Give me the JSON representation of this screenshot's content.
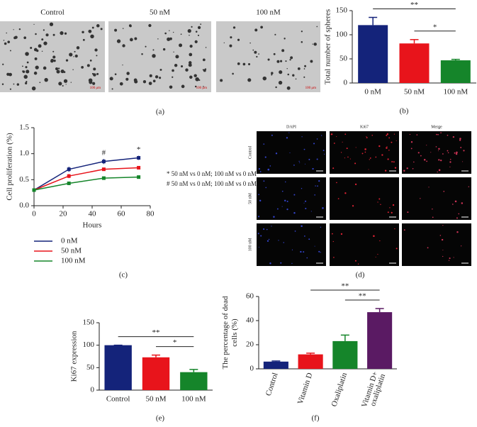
{
  "figure_a": {
    "label": "(a)",
    "images": [
      "Control",
      "50 nM",
      "100 nM"
    ],
    "scale_bar": "100 μm"
  },
  "figure_d": {
    "label": "(d)",
    "columns": [
      "DAPI",
      "Ki67",
      "Merge"
    ],
    "rows": [
      "Control",
      "50 nM",
      "100 nM"
    ]
  },
  "chart_data": [
    {
      "type": "bar",
      "panel": "(b)",
      "ylabel": [
        "Total number of spheres"
      ],
      "categories": [
        "0 nM",
        "50 nM",
        "100 nM"
      ],
      "values": [
        120,
        82,
        47
      ],
      "errors": [
        16,
        8,
        2
      ],
      "colors": [
        "#14237a",
        "#e8141b",
        "#15852a"
      ],
      "ylim": [
        0,
        150
      ],
      "yticks": [
        0,
        50,
        100,
        150
      ],
      "annotations": [
        {
          "text": "*",
          "between": [
            1,
            2
          ]
        },
        {
          "text": "**",
          "between": [
            0,
            2
          ]
        }
      ]
    },
    {
      "type": "line",
      "panel": "(c)",
      "ylabel": [
        "Cell proliferation (%)"
      ],
      "xlabel": "Hours",
      "x": [
        0,
        24,
        48,
        72
      ],
      "series": [
        {
          "name": "0 nM",
          "color": "#14237a",
          "values": [
            0.3,
            0.7,
            0.85,
            0.92
          ],
          "errors": [
            0.03,
            0.05,
            0.05,
            0.04
          ]
        },
        {
          "name": "50 nM",
          "color": "#e8141b",
          "values": [
            0.3,
            0.57,
            0.7,
            0.73
          ],
          "errors": [
            0.03,
            0.04,
            0.02,
            0.03
          ]
        },
        {
          "name": "100 nM",
          "color": "#15852a",
          "values": [
            0.3,
            0.43,
            0.53,
            0.55
          ],
          "errors": [
            0.02,
            0.02,
            0.02,
            0.02
          ]
        }
      ],
      "xlim": [
        0,
        80
      ],
      "xticks": [
        0,
        20,
        40,
        60,
        80
      ],
      "ylim": [
        0,
        1.5
      ],
      "yticks": [
        {
          "value": 0,
          "label": "0.0"
        },
        {
          "value": 0.5,
          "label": "0.5"
        },
        {
          "value": 1,
          "label": "1.0"
        },
        {
          "value": 1.5,
          "label": "1.5"
        }
      ],
      "annotations": [
        {
          "text": "#",
          "at": 2
        },
        {
          "text": "*",
          "at": 3
        }
      ],
      "notes": [
        "* 50 nM vs 0 nM; 100 nM vs 0 nM",
        "# 50 nM vs 0 nM; 100 nM vs 0 nM"
      ]
    },
    {
      "type": "bar",
      "panel": "(e)",
      "ylabel": [
        "Ki67 expression"
      ],
      "categories": [
        "Control",
        "50 nM",
        "100 nM"
      ],
      "values": [
        100,
        73,
        40
      ],
      "errors": [
        0,
        5,
        6
      ],
      "colors": [
        "#14237a",
        "#e8141b",
        "#15852a"
      ],
      "ylim": [
        0,
        150
      ],
      "yticks": [
        0,
        50,
        100,
        150
      ],
      "annotations": [
        {
          "text": "*",
          "between": [
            1,
            2
          ]
        },
        {
          "text": "**",
          "between": [
            0,
            2
          ]
        }
      ]
    },
    {
      "type": "bar",
      "panel": "(f)",
      "ylabel": [
        "The percentage of dead",
        "cells (%)"
      ],
      "rotate_labels": true,
      "categories": [
        "Control",
        "Vitamin D",
        "Oxaliplatin",
        [
          "Vitamin D+",
          "oxaliplatin"
        ]
      ],
      "values": [
        6,
        12,
        23,
        47
      ],
      "errors": [
        0.5,
        1,
        5,
        3
      ],
      "colors": [
        "#14237a",
        "#e8141b",
        "#15852a",
        "#5a1a63"
      ],
      "ylim": [
        0,
        60
      ],
      "yticks": [
        0,
        20,
        40,
        60
      ],
      "annotations": [
        {
          "text": "**",
          "between": [
            2,
            3
          ]
        },
        {
          "text": "**",
          "between": [
            1,
            3
          ]
        }
      ]
    }
  ]
}
